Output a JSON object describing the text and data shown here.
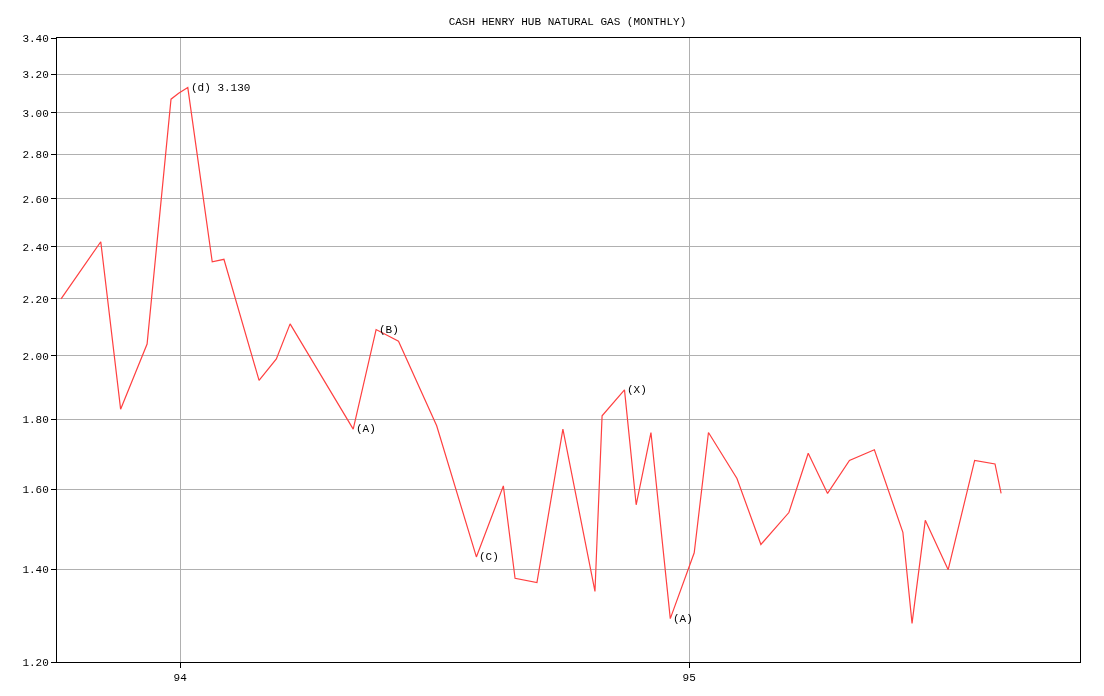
{
  "chart_data": {
    "type": "line",
    "title": "CASH HENRY HUB NATURAL GAS (MONTHLY)",
    "x": [
      1993.766,
      1993.844,
      1993.883,
      1993.935,
      1993.982,
      1993.997,
      1994.015,
      1994.063,
      1994.086,
      1994.155,
      1994.189,
      1994.216,
      1994.34,
      1994.385,
      1994.429,
      1994.504,
      1994.582,
      1994.635,
      1994.658,
      1994.701,
      1994.752,
      1994.815,
      1994.829,
      1994.873,
      1994.896,
      1994.925,
      1994.963,
      1995.01,
      1995.038,
      1995.094,
      1995.141,
      1995.196,
      1995.234,
      1995.272,
      1995.315,
      1995.364,
      1995.42,
      1995.438,
      1995.464,
      1995.509,
      1995.561,
      1995.601,
      1995.613
    ],
    "series": [
      {
        "color": "#ff4040",
        "values": [
          2.2,
          2.42,
          1.83,
          2.04,
          3.07,
          3.1,
          3.13,
          2.34,
          2.35,
          1.92,
          1.99,
          2.11,
          1.77,
          2.09,
          2.05,
          1.78,
          1.43,
          1.61,
          1.38,
          1.37,
          1.77,
          1.35,
          1.81,
          1.89,
          1.56,
          1.76,
          1.29,
          1.44,
          1.76,
          1.63,
          1.46,
          1.54,
          1.7,
          1.59,
          1.68,
          1.71,
          1.49,
          1.28,
          1.52,
          1.4,
          1.68,
          1.67,
          1.59
        ]
      }
    ],
    "annotations": [
      {
        "text": "(d) 3.130",
        "x": 1994.015,
        "y": 3.13
      },
      {
        "text": "(B)",
        "x": 1994.385,
        "y": 2.09
      },
      {
        "text": "(A)",
        "x": 1994.34,
        "y": 1.77
      },
      {
        "text": "(C)",
        "x": 1994.582,
        "y": 1.43
      },
      {
        "text": "(X)",
        "x": 1994.873,
        "y": 1.89
      },
      {
        "text": "(A)",
        "x": 1994.963,
        "y": 1.29
      }
    ],
    "xlim": [
      1993.758,
      1995.768
    ],
    "xticks": [
      {
        "value": 1994,
        "label": "94"
      },
      {
        "value": 1995,
        "label": "95"
      }
    ],
    "ylim": [
      1.2,
      3.4
    ],
    "yticks": [
      {
        "value": 1.2,
        "label": "1.20"
      },
      {
        "value": 1.4,
        "label": "1.40"
      },
      {
        "value": 1.6,
        "label": "1.60"
      },
      {
        "value": 1.8,
        "label": "1.80"
      },
      {
        "value": 2.0,
        "label": "2.00"
      },
      {
        "value": 2.2,
        "label": "2.20"
      },
      {
        "value": 2.4,
        "label": "2.40"
      },
      {
        "value": 2.6,
        "label": "2.60"
      },
      {
        "value": 2.8,
        "label": "2.80"
      },
      {
        "value": 3.0,
        "label": "3.00"
      },
      {
        "value": 3.2,
        "label": "3.20"
      },
      {
        "value": 3.4,
        "label": "3.40"
      }
    ],
    "log": true,
    "grid": true,
    "marker": "none",
    "line_style": "solid"
  }
}
